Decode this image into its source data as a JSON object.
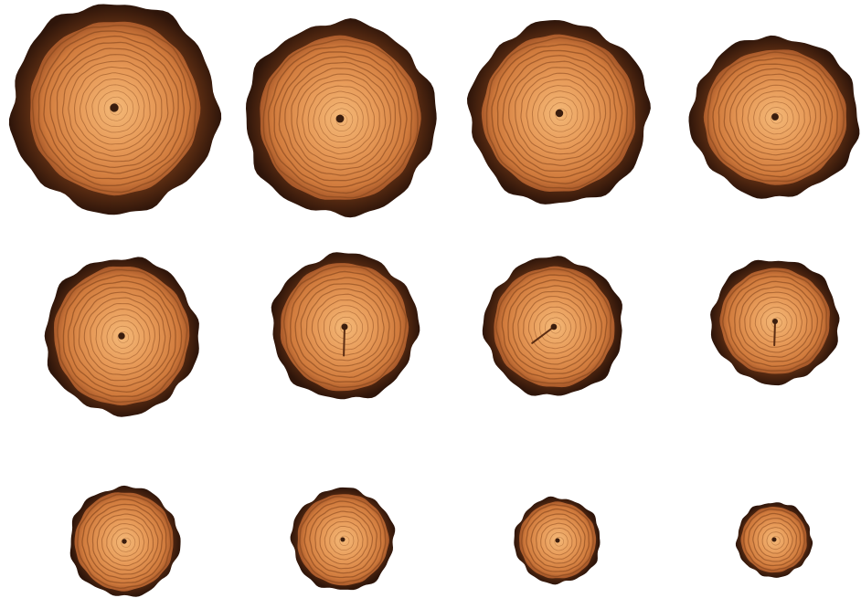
{
  "image": {
    "background": "#ffffff",
    "colors": {
      "bark_dark": "#3a1c0c",
      "bark_mid": "#5a2c12",
      "wood_light": "#f0ad6a",
      "wood_mid": "#d8874a",
      "wood_edge": "#b8642e",
      "ring_line": "#8a4a20",
      "pith": "#3b1e0e"
    },
    "rows": [
      {
        "row": 1,
        "slice_count": 4
      },
      {
        "row": 2,
        "slice_count": 4
      },
      {
        "row": 3,
        "slice_count": 4
      }
    ],
    "slices": [
      {
        "id": "slice-1",
        "row": 1,
        "rings": 14,
        "cracked": false
      },
      {
        "id": "slice-2",
        "row": 1,
        "rings": 14,
        "cracked": false
      },
      {
        "id": "slice-3",
        "row": 1,
        "rings": 13,
        "cracked": false
      },
      {
        "id": "slice-4",
        "row": 1,
        "rings": 12,
        "cracked": false
      },
      {
        "id": "slice-5",
        "row": 2,
        "rings": 12,
        "cracked": false
      },
      {
        "id": "slice-6",
        "row": 2,
        "rings": 11,
        "cracked": true
      },
      {
        "id": "slice-7",
        "row": 2,
        "rings": 11,
        "cracked": true
      },
      {
        "id": "slice-8",
        "row": 2,
        "rings": 10,
        "cracked": true
      },
      {
        "id": "slice-9",
        "row": 3,
        "rings": 10,
        "cracked": false
      },
      {
        "id": "slice-10",
        "row": 3,
        "rings": 9,
        "cracked": false
      },
      {
        "id": "slice-11",
        "row": 3,
        "rings": 8,
        "cracked": false
      },
      {
        "id": "slice-12",
        "row": 3,
        "rings": 7,
        "cracked": false
      }
    ]
  }
}
